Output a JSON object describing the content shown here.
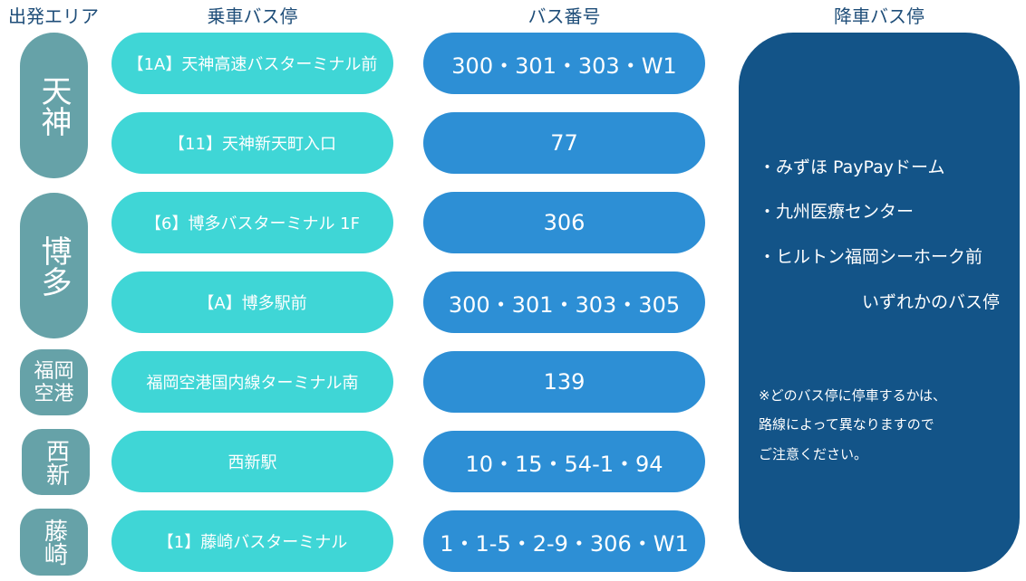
{
  "headers": {
    "area": "出発エリア",
    "stop": "乗車バス停",
    "bus": "バス番号",
    "dest": "降車バス停"
  },
  "areas": [
    "天神",
    "博多",
    "福岡空港",
    "西新",
    "藤崎"
  ],
  "rows": [
    {
      "stop": "【1A】天神高速バスターミナル前",
      "bus": "300・301・303・W1"
    },
    {
      "stop": "【11】天神新天町入口",
      "bus": "77"
    },
    {
      "stop": "【6】博多バスターミナル 1F",
      "bus": "306"
    },
    {
      "stop": "【A】博多駅前",
      "bus": "300・301・303・305"
    },
    {
      "stop": "福岡空港国内線ターミナル南",
      "bus": "139"
    },
    {
      "stop": "西新駅",
      "bus": "10・15・54-1・94"
    },
    {
      "stop": "【1】藤崎バスターミナル",
      "bus": "1・1-5・2-9・306・W1"
    }
  ],
  "destinations": [
    "・みずほ PayPayドーム",
    "・九州医療センター",
    "・ヒルトン福岡シーホーク前"
  ],
  "dest_suffix": "いずれかのバス停",
  "notes": [
    "※どのバス停に停車するかは、",
    "路線によって異なりますので",
    "ご注意ください。"
  ],
  "colors": {
    "area": "#66a2a8",
    "stop": "#3fd6d6",
    "bus": "#2d8fd5",
    "panel": "#135488",
    "header": "#1f4e79"
  }
}
